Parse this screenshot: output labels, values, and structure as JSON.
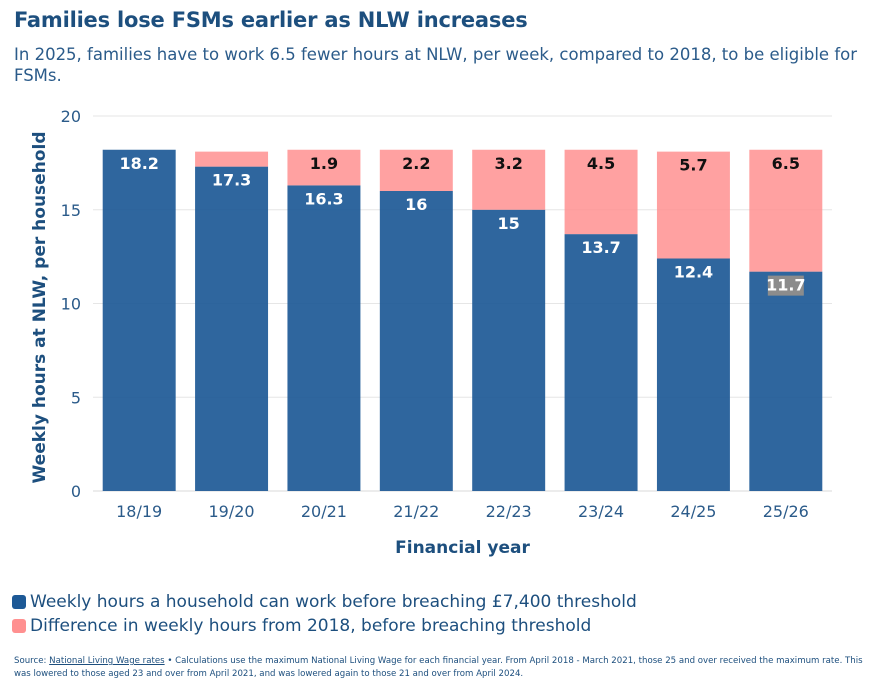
{
  "chart_data": {
    "type": "bar",
    "stacked": true,
    "title": "Families lose FSMs earlier as NLW increases",
    "subtitle": "In 2025, families have to work 6.5 fewer hours at NLW, per week, compared to 2018, to be eligible for FSMs.",
    "xlabel": "Financial year",
    "ylabel": "Weekly hours at NLW, per household",
    "ylim": [
      0,
      20
    ],
    "yticks": [
      "0",
      "5",
      "10",
      "15",
      "20"
    ],
    "grid": true,
    "legend_position": "bottom-left",
    "categories": [
      "18/19",
      "19/20",
      "20/21",
      "21/22",
      "22/23",
      "23/24",
      "24/25",
      "25/26"
    ],
    "series": [
      {
        "name": "Weekly hours a household can work before breaching £7,400 threshold",
        "color": "#1d5996",
        "values": [
          18.2,
          17.3,
          16.3,
          16,
          15,
          13.7,
          12.4,
          11.7
        ],
        "labels": [
          "18.2",
          "17.3",
          "16.3",
          "16",
          "15",
          "13.7",
          "12.4",
          "11.7"
        ]
      },
      {
        "name": "Difference in weekly hours from 2018, before breaching threshold",
        "color": "#ff9090",
        "values": [
          0,
          0.8,
          1.9,
          2.2,
          3.2,
          4.5,
          5.7,
          6.5
        ],
        "labels": [
          "",
          "",
          "1.9",
          "2.2",
          "3.2",
          "4.5",
          "5.7",
          "6.5"
        ]
      }
    ]
  },
  "footnote": {
    "source_label": "Source:",
    "source_link": "National Living Wage rates",
    "text": " • Calculations use the maximum National Living Wage for each financial year. From April 2018 - March 2021, those 25 and over received the maximum rate. This was lowered to those aged 23 and over from April 2021, and was lowered again to those 21 and over from April 2024."
  }
}
